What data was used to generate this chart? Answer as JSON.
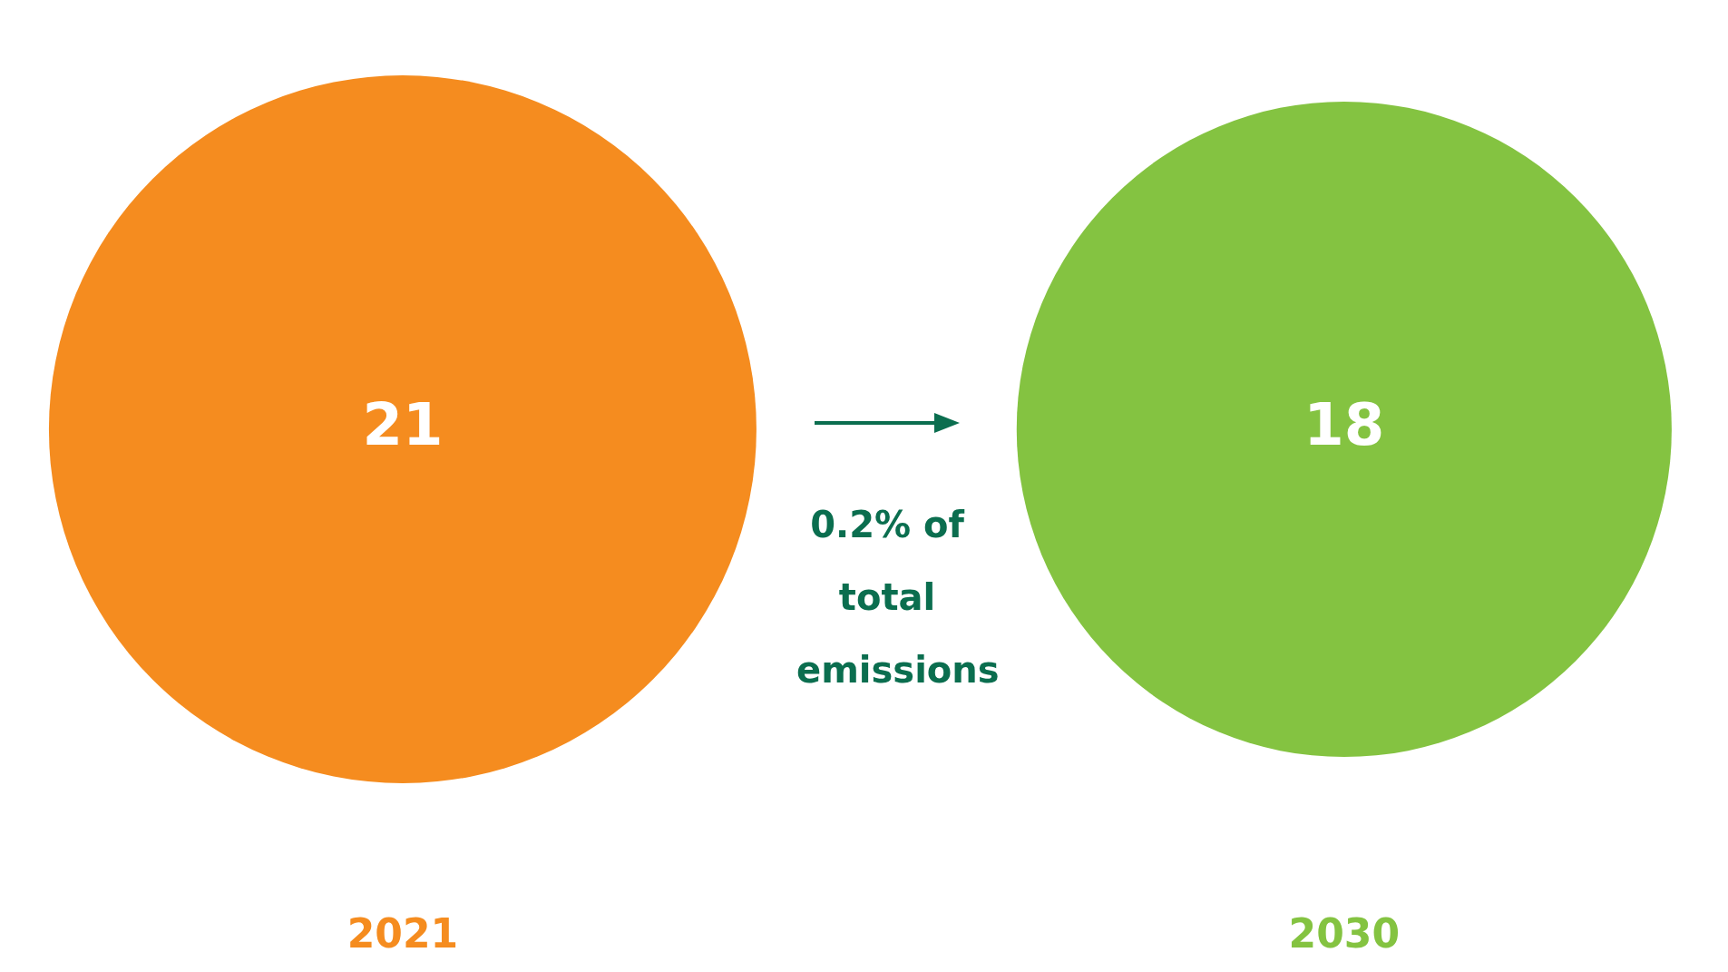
{
  "chart_data": {
    "type": "other",
    "categories": [
      "2021",
      "2030"
    ],
    "values": [
      21,
      18
    ],
    "colors": [
      "#f58c1f",
      "#84c341"
    ],
    "data_labels": true,
    "annotations": [
      "0.2% of total emissions"
    ]
  }
}
